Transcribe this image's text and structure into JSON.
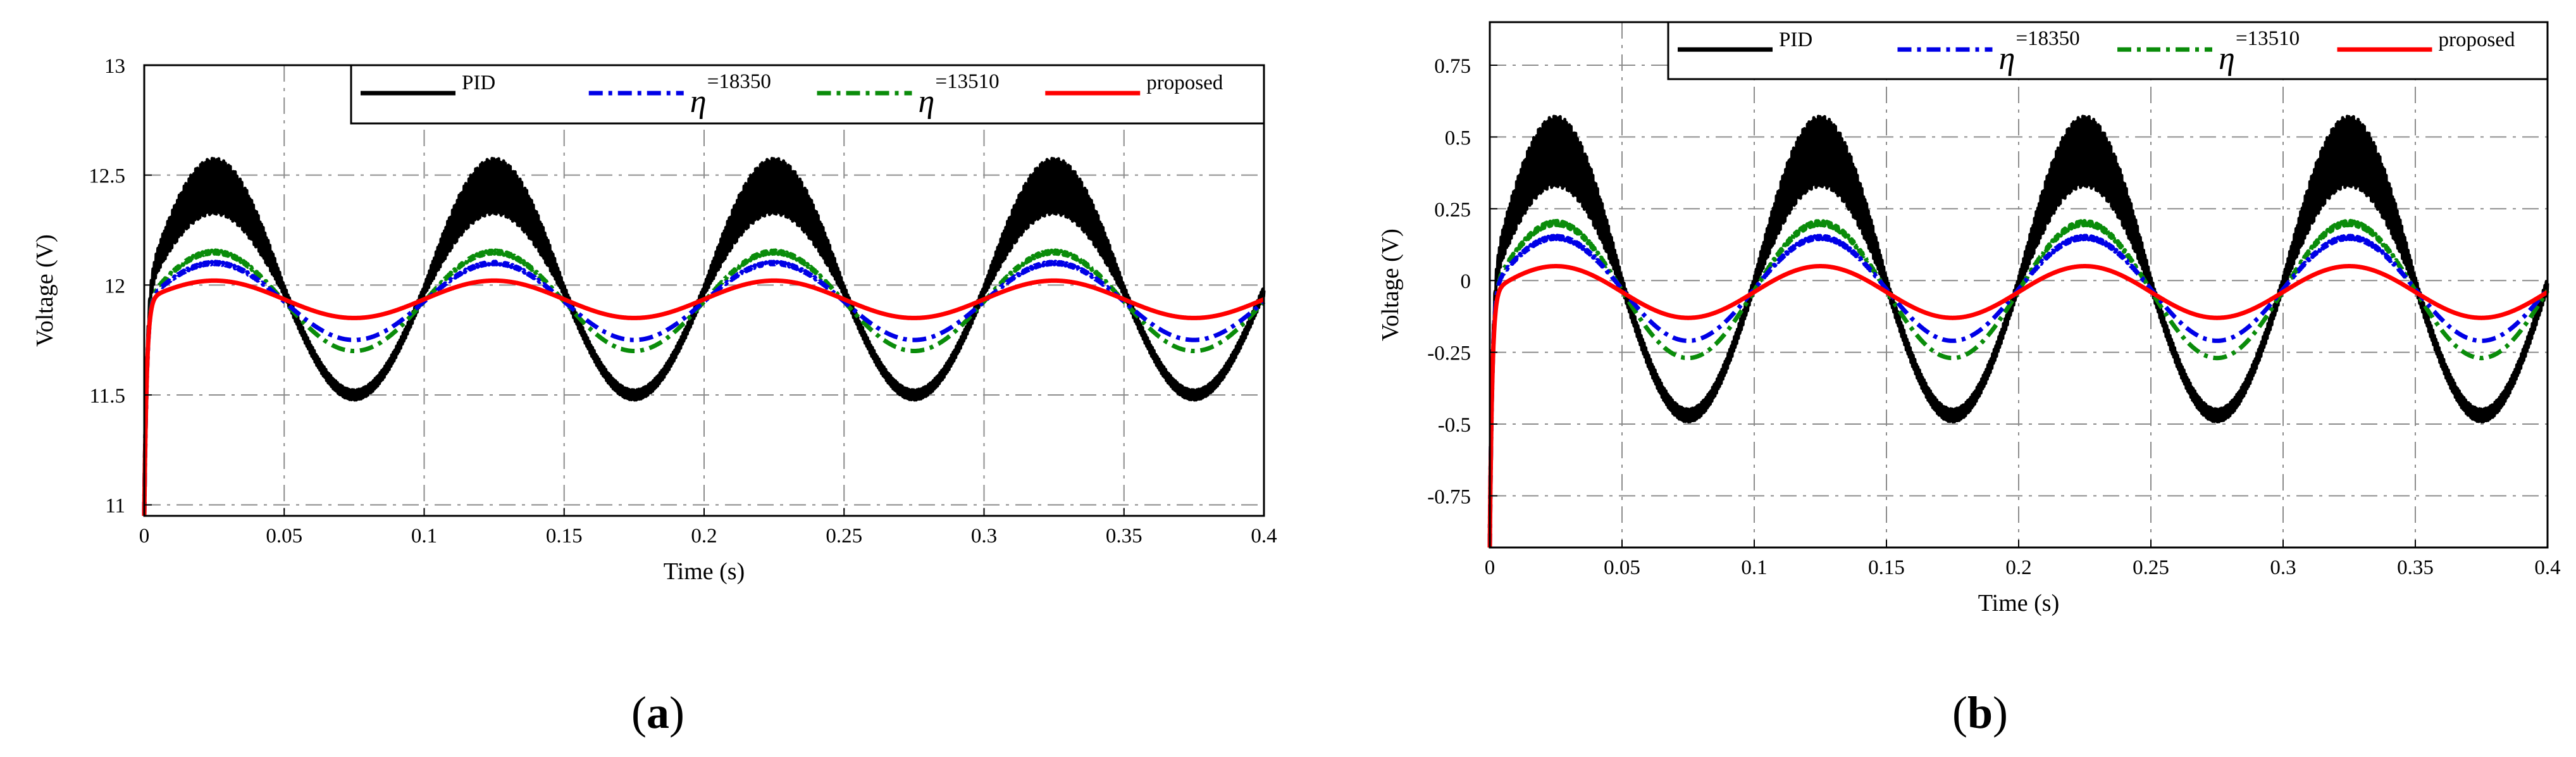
{
  "chart_data": [
    {
      "type": "line",
      "panel_label": "a",
      "xlabel": "Time (s)",
      "ylabel": "Voltage (V)",
      "xlim": [
        0,
        0.4
      ],
      "ylim": [
        10.95,
        13
      ],
      "xticks": [
        0,
        0.05,
        0.1,
        0.15,
        0.2,
        0.25,
        0.3,
        0.35,
        0.4
      ],
      "xtick_labels": [
        "0",
        "0.05",
        "0.1",
        "0.15",
        "0.2",
        "0.25",
        "0.3",
        "0.35",
        "0.4"
      ],
      "yticks": [
        11,
        11.5,
        12,
        12.5,
        13
      ],
      "ytick_labels": [
        "11",
        "11.5",
        "12",
        "12.5",
        "13"
      ],
      "grid": true,
      "legend_position": "top-right",
      "period_s": 0.1,
      "series": [
        {
          "name": "PID",
          "legend_text": "PID",
          "color": "#000000",
          "style": "solid",
          "baseline": 12.0,
          "peak": 12.45,
          "trough": 11.5
        },
        {
          "name": "η=18350",
          "legend_symbol": "η",
          "legend_sub": "=18350",
          "color": "#0000e6",
          "style": "dashdot",
          "baseline": 11.93,
          "peak": 12.1,
          "trough": 11.75
        },
        {
          "name": "η=13510",
          "legend_symbol": "η",
          "legend_sub": "=13510",
          "color": "#0a8c0a",
          "style": "dashdot",
          "baseline": 11.93,
          "peak": 12.15,
          "trough": 11.7
        },
        {
          "name": "proposed",
          "legend_text": "proposed",
          "color": "#ff0000",
          "style": "solid",
          "baseline": 11.93,
          "peak": 12.02,
          "trough": 11.85
        }
      ]
    },
    {
      "type": "line",
      "panel_label": "b",
      "xlabel": "Time (s)",
      "ylabel": "Voltage (V)",
      "xlim": [
        0,
        0.4
      ],
      "ylim": [
        -0.93,
        0.9
      ],
      "xticks": [
        0,
        0.05,
        0.1,
        0.15,
        0.2,
        0.25,
        0.3,
        0.35,
        0.4
      ],
      "xtick_labels": [
        "0",
        "0.05",
        "0.1",
        "0.15",
        "0.2",
        "0.25",
        "0.3",
        "0.35",
        "0.4"
      ],
      "yticks": [
        -0.75,
        -0.5,
        -0.25,
        0,
        0.25,
        0.5,
        0.75
      ],
      "ytick_labels": [
        "-0.75",
        "-0.5",
        "-0.25",
        "0",
        "0.25",
        "0.5",
        "0.75"
      ],
      "grid": true,
      "legend_position": "top-right",
      "period_s": 0.1,
      "series": [
        {
          "name": "PID",
          "legend_text": "PID",
          "color": "#000000",
          "style": "solid",
          "baseline": 0.0,
          "peak": 0.45,
          "trough": -0.47
        },
        {
          "name": "η=18350",
          "legend_symbol": "η",
          "legend_sub": "=18350",
          "color": "#0000e6",
          "style": "dashdot",
          "baseline": -0.03,
          "peak": 0.15,
          "trough": -0.21
        },
        {
          "name": "η=13510",
          "legend_symbol": "η",
          "legend_sub": "=13510",
          "color": "#0a8c0a",
          "style": "dashdot",
          "baseline": -0.03,
          "peak": 0.2,
          "trough": -0.27
        },
        {
          "name": "proposed",
          "legend_text": "proposed",
          "color": "#ff0000",
          "style": "solid",
          "baseline": -0.03,
          "peak": 0.05,
          "trough": -0.13
        }
      ]
    }
  ]
}
